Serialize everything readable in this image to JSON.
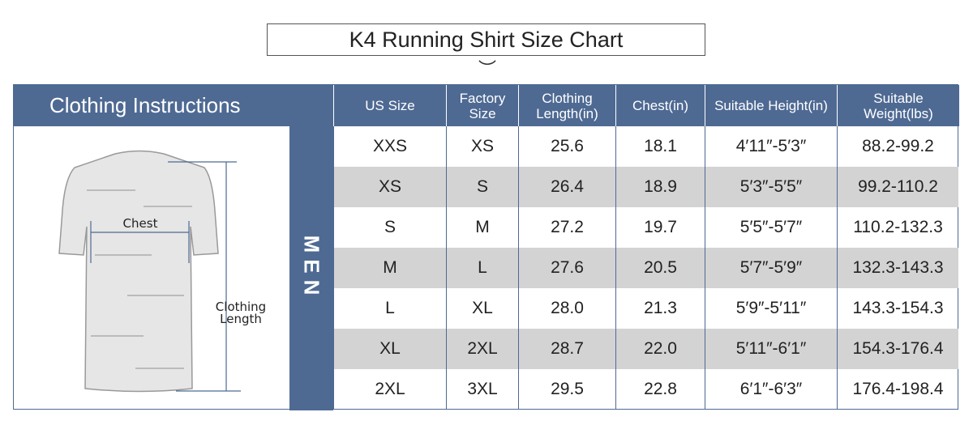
{
  "title": "K4 Running Shirt Size Chart",
  "left_header": "Clothing Instructions",
  "diagram": {
    "chest_label": "Chest",
    "length_label_1": "Clothing",
    "length_label_2": "Length"
  },
  "group_label": "MEN",
  "columns": [
    "US Size",
    "Factory Size",
    "Clothing Length(in)",
    "Chest(in)",
    "Suitable Height(in)",
    "Suitable Weight(lbs)"
  ],
  "rows": [
    [
      "XXS",
      "XS",
      "25.6",
      "18.1",
      "4′11″-5′3″",
      "88.2-99.2"
    ],
    [
      "XS",
      "S",
      "26.4",
      "18.9",
      "5′3″-5′5″",
      "99.2-110.2"
    ],
    [
      "S",
      "M",
      "27.2",
      "19.7",
      "5′5″-5′7″",
      "110.2-132.3"
    ],
    [
      "M",
      "L",
      "27.6",
      "20.5",
      "5′7″-5′9″",
      "132.3-143.3"
    ],
    [
      "L",
      "XL",
      "28.0",
      "21.3",
      "5′9″-5′11″",
      "143.3-154.3"
    ],
    [
      "XL",
      "2XL",
      "28.7",
      "22.0",
      "5′11″-6′1″",
      "154.3-176.4"
    ],
    [
      "2XL",
      "3XL",
      "29.5",
      "22.8",
      "6′1″-6′3″",
      "176.4-198.4"
    ]
  ],
  "colors": {
    "header": "#4e6a93",
    "alt_row": "#d3d3d3"
  }
}
